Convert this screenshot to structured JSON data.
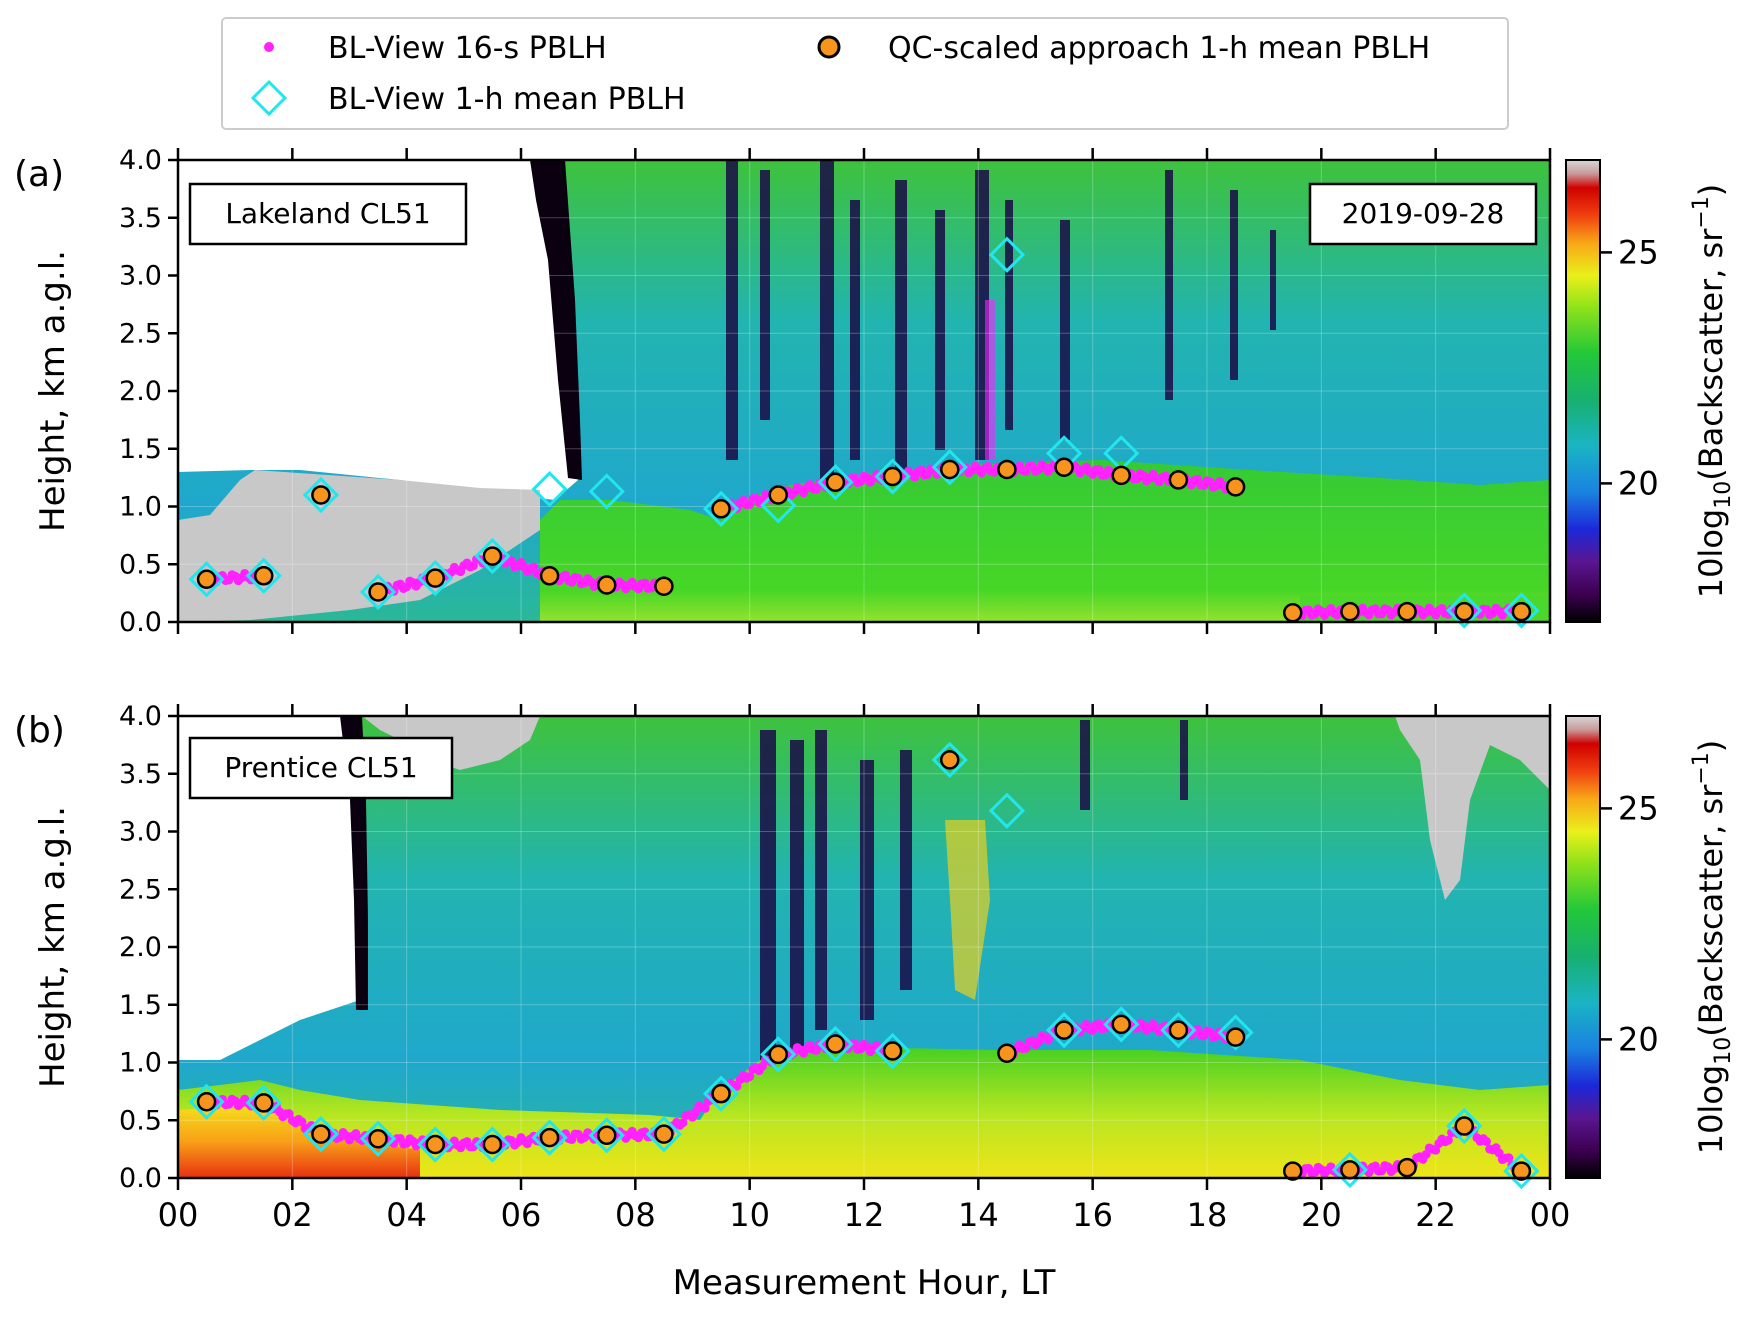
{
  "legend": {
    "entries": [
      {
        "label": "BL-View 16-s PBLH",
        "marker": "dot",
        "color": "#ff22ff"
      },
      {
        "label": "QC-scaled approach 1-h mean PBLH",
        "marker": "circle",
        "color": "#f7941d"
      },
      {
        "label": "BL-View 1-h mean PBLH",
        "marker": "diamond",
        "color": "#22e6ee"
      }
    ]
  },
  "colors": {
    "dots": "#ff22ff",
    "circle_fill": "#f7941d",
    "diamond": "#22e6ee",
    "clouds": "#c8c8c8",
    "background_fill": "#22b4c0",
    "boundary_layer": "#3cd22a"
  },
  "chart_data": [
    {
      "type": "heatmap",
      "panel": "(a)",
      "site_label": "Lakeland CL51",
      "date_label": "2019-09-28",
      "xlabel": "",
      "ylabel": "Height, km a.g.l.",
      "xlim": [
        0,
        24
      ],
      "ylim": [
        0,
        4
      ],
      "x_ticks": [
        "00",
        "02",
        "04",
        "06",
        "08",
        "10",
        "12",
        "14",
        "16",
        "18",
        "20",
        "22",
        "00"
      ],
      "y_ticks": [
        "0.0",
        "0.5",
        "1.0",
        "1.5",
        "2.0",
        "2.5",
        "3.0",
        "3.5",
        "4.0"
      ],
      "colorbar": {
        "label": "10log10(Backscatter, sr−1)",
        "ticks": [
          "20",
          "25"
        ],
        "range": [
          17,
          27
        ]
      },
      "series": [
        {
          "name": "QC-scaled approach 1-h mean PBLH",
          "x": [
            0.5,
            1.5,
            2.5,
            3.5,
            4.5,
            5.5,
            6.5,
            7.5,
            8.5,
            9.5,
            10.5,
            11.5,
            12.5,
            13.5,
            14.5,
            15.5,
            16.5,
            17.5,
            18.5,
            19.5,
            20.5,
            21.5,
            22.5,
            23.5
          ],
          "y": [
            0.37,
            0.4,
            1.1,
            0.26,
            0.38,
            0.57,
            0.4,
            0.32,
            0.31,
            0.98,
            1.1,
            1.21,
            1.26,
            1.32,
            1.32,
            1.34,
            1.27,
            1.23,
            1.17,
            0.08,
            0.09,
            0.09,
            0.09,
            0.09
          ]
        },
        {
          "name": "BL-View 1-h mean PBLH",
          "x": [
            0.5,
            1.5,
            2.5,
            3.5,
            4.5,
            5.5,
            6.5,
            7.5,
            9.5,
            10.5,
            11.5,
            12.5,
            13.5,
            14.5,
            15.5,
            16.5,
            22.5,
            23.5
          ],
          "y": [
            0.37,
            0.4,
            1.1,
            0.26,
            0.38,
            0.57,
            1.15,
            1.13,
            0.98,
            1.01,
            1.21,
            1.26,
            1.34,
            3.18,
            1.46,
            1.46,
            0.1,
            0.1
          ]
        }
      ]
    },
    {
      "type": "heatmap",
      "panel": "(b)",
      "site_label": "Prentice CL51",
      "xlabel": "Measurement Hour, LT",
      "ylabel": "Height, km a.g.l.",
      "xlim": [
        0,
        24
      ],
      "ylim": [
        0,
        4
      ],
      "x_ticks": [
        "00",
        "02",
        "04",
        "06",
        "08",
        "10",
        "12",
        "14",
        "16",
        "18",
        "20",
        "22",
        "00"
      ],
      "y_ticks": [
        "0.0",
        "0.5",
        "1.0",
        "1.5",
        "2.0",
        "2.5",
        "3.0",
        "3.5",
        "4.0"
      ],
      "colorbar": {
        "label": "10log10(Backscatter, sr−1)",
        "ticks": [
          "20",
          "25"
        ],
        "range": [
          17,
          27
        ]
      },
      "series": [
        {
          "name": "QC-scaled approach 1-h mean PBLH",
          "x": [
            0.5,
            1.5,
            2.5,
            3.5,
            4.5,
            5.5,
            6.5,
            7.5,
            8.5,
            9.5,
            10.5,
            11.5,
            12.5,
            13.5,
            14.5,
            15.5,
            16.5,
            17.5,
            18.5,
            19.5,
            20.5,
            21.5,
            22.5,
            23.5
          ],
          "y": [
            0.66,
            0.65,
            0.38,
            0.34,
            0.29,
            0.29,
            0.35,
            0.37,
            0.38,
            0.73,
            1.07,
            1.16,
            1.1,
            3.62,
            1.08,
            1.28,
            1.33,
            1.28,
            1.22,
            0.06,
            0.07,
            0.09,
            0.45,
            0.06
          ]
        },
        {
          "name": "BL-View 1-h mean PBLH",
          "x": [
            0.5,
            1.5,
            2.5,
            3.5,
            4.5,
            5.5,
            6.5,
            7.5,
            8.5,
            9.5,
            10.5,
            11.5,
            12.5,
            13.5,
            14.5,
            15.5,
            16.5,
            17.5,
            18.5,
            20.5,
            22.5,
            23.5
          ],
          "y": [
            0.66,
            0.65,
            0.38,
            0.34,
            0.29,
            0.29,
            0.35,
            0.37,
            0.38,
            0.73,
            1.07,
            1.16,
            1.1,
            3.62,
            3.18,
            1.28,
            1.33,
            1.28,
            1.26,
            0.07,
            0.45,
            0.06
          ]
        }
      ]
    }
  ]
}
